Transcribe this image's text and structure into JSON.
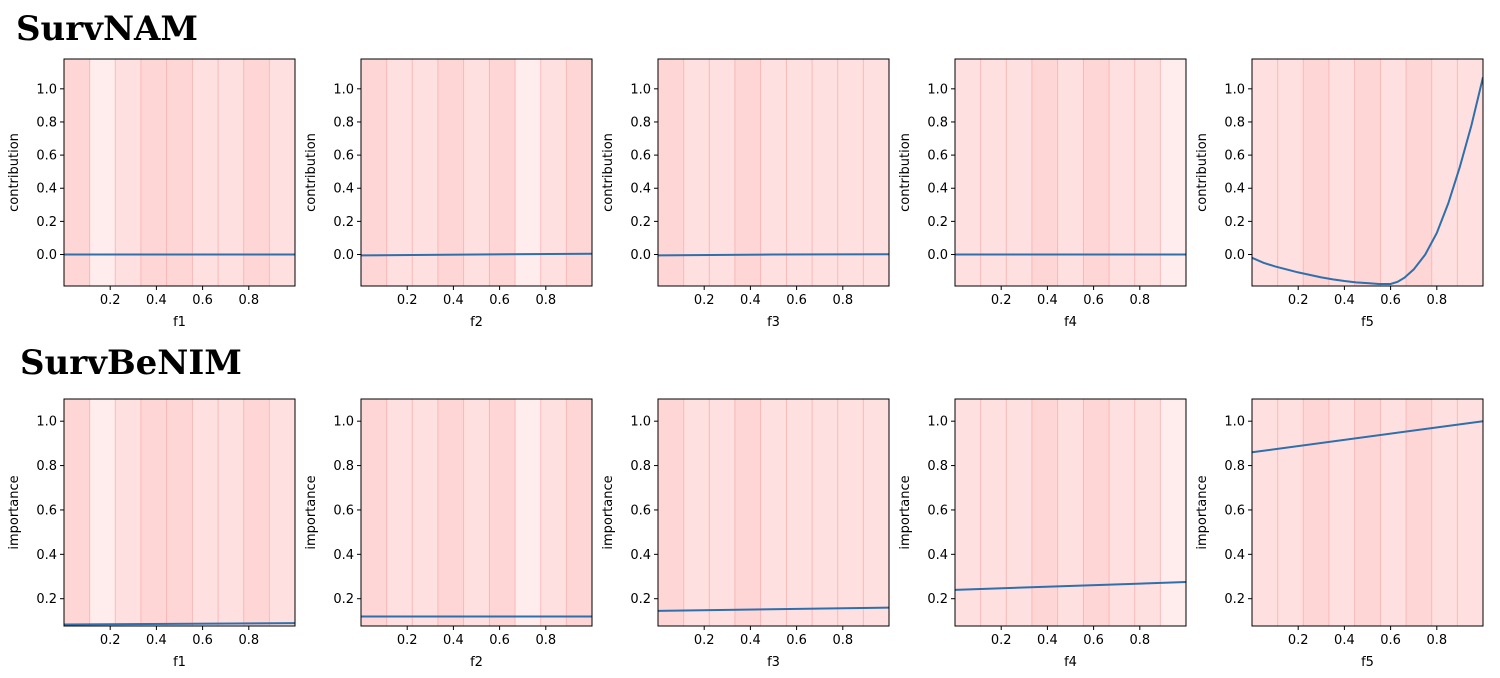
{
  "sections": [
    {
      "title": "SurvNAM"
    },
    {
      "title": "SurvBeNIM"
    }
  ],
  "colors": {
    "line": "#2f6fab",
    "band_light": "#ffecec",
    "band_mid": "#ffe0e0",
    "band_dark": "#ffd6d6",
    "band_edge": "#f4a9a6",
    "axis": "#000000"
  },
  "chart_data": [
    {
      "type": "line",
      "section": 0,
      "xlabel": "f1",
      "ylabel": "contribution",
      "xlim": [
        0,
        1
      ],
      "ylim": [
        -0.19,
        1.18
      ],
      "xticks": [
        "0.2",
        "0.4",
        "0.6",
        "0.8"
      ],
      "yticks": [
        "0.0",
        "0.2",
        "0.4",
        "0.6",
        "0.8",
        "1.0"
      ],
      "bands": [
        3,
        1,
        2,
        3,
        3,
        2,
        2,
        3,
        2
      ],
      "series": [
        {
          "x": [
            0,
            1
          ],
          "y": [
            0.0,
            0.0
          ]
        }
      ]
    },
    {
      "type": "line",
      "section": 0,
      "xlabel": "f2",
      "ylabel": "contribution",
      "xlim": [
        0,
        1
      ],
      "ylim": [
        -0.19,
        1.18
      ],
      "xticks": [
        "0.2",
        "0.4",
        "0.6",
        "0.8"
      ],
      "yticks": [
        "0.0",
        "0.2",
        "0.4",
        "0.6",
        "0.8",
        "1.0"
      ],
      "bands": [
        3,
        2,
        2,
        3,
        2,
        3,
        1,
        2,
        3
      ],
      "series": [
        {
          "x": [
            0,
            0.5,
            1
          ],
          "y": [
            -0.005,
            0.0,
            0.005
          ]
        }
      ]
    },
    {
      "type": "line",
      "section": 0,
      "xlabel": "f3",
      "ylabel": "contribution",
      "xlim": [
        0,
        1
      ],
      "ylim": [
        -0.19,
        1.18
      ],
      "xticks": [
        "0.2",
        "0.4",
        "0.6",
        "0.8"
      ],
      "yticks": [
        "0.0",
        "0.2",
        "0.4",
        "0.6",
        "0.8",
        "1.0"
      ],
      "bands": [
        3,
        2,
        2,
        3,
        2,
        2,
        2,
        2,
        2
      ],
      "series": [
        {
          "x": [
            0,
            0.5,
            1
          ],
          "y": [
            -0.005,
            0.0,
            0.002
          ]
        }
      ]
    },
    {
      "type": "line",
      "section": 0,
      "xlabel": "f4",
      "ylabel": "contribution",
      "xlim": [
        0,
        1
      ],
      "ylim": [
        -0.19,
        1.18
      ],
      "xticks": [
        "0.2",
        "0.4",
        "0.6",
        "0.8"
      ],
      "yticks": [
        "0.0",
        "0.2",
        "0.4",
        "0.6",
        "0.8",
        "1.0"
      ],
      "bands": [
        2,
        2,
        2,
        3,
        2,
        3,
        2,
        2,
        1
      ],
      "series": [
        {
          "x": [
            0,
            1
          ],
          "y": [
            0.0,
            0.0
          ]
        }
      ]
    },
    {
      "type": "line",
      "section": 0,
      "xlabel": "f5",
      "ylabel": "contribution",
      "xlim": [
        0,
        1
      ],
      "ylim": [
        -0.19,
        1.18
      ],
      "xticks": [
        "0.2",
        "0.4",
        "0.6",
        "0.8"
      ],
      "yticks": [
        "0.0",
        "0.2",
        "0.4",
        "0.6",
        "0.8",
        "1.0"
      ],
      "bands": [
        2,
        2,
        3,
        2,
        3,
        2,
        3,
        2,
        2
      ],
      "series": [
        {
          "x": [
            0,
            0.05,
            0.1,
            0.15,
            0.2,
            0.25,
            0.3,
            0.35,
            0.4,
            0.45,
            0.5,
            0.55,
            0.6,
            0.63,
            0.66,
            0.7,
            0.75,
            0.8,
            0.85,
            0.9,
            0.95,
            1.0
          ],
          "y": [
            -0.02,
            -0.05,
            -0.072,
            -0.09,
            -0.108,
            -0.123,
            -0.138,
            -0.15,
            -0.16,
            -0.168,
            -0.173,
            -0.178,
            -0.178,
            -0.165,
            -0.14,
            -0.09,
            0.0,
            0.13,
            0.31,
            0.53,
            0.78,
            1.07
          ]
        }
      ]
    },
    {
      "type": "line",
      "section": 1,
      "xlabel": "f1",
      "ylabel": "importance",
      "xlim": [
        0,
        1
      ],
      "ylim": [
        0.077,
        1.1
      ],
      "xticks": [
        "0.2",
        "0.4",
        "0.6",
        "0.8"
      ],
      "yticks": [
        "0.2",
        "0.4",
        "0.6",
        "0.8",
        "1.0"
      ],
      "bands": [
        3,
        1,
        2,
        3,
        3,
        2,
        2,
        3,
        2
      ],
      "series": [
        {
          "x": [
            0,
            1
          ],
          "y": [
            0.084,
            0.09
          ]
        }
      ]
    },
    {
      "type": "line",
      "section": 1,
      "xlabel": "f2",
      "ylabel": "importance",
      "xlim": [
        0,
        1
      ],
      "ylim": [
        0.077,
        1.1
      ],
      "xticks": [
        "0.2",
        "0.4",
        "0.6",
        "0.8"
      ],
      "yticks": [
        "0.2",
        "0.4",
        "0.6",
        "0.8",
        "1.0"
      ],
      "bands": [
        3,
        2,
        2,
        3,
        2,
        3,
        1,
        2,
        3
      ],
      "series": [
        {
          "x": [
            0,
            1
          ],
          "y": [
            0.12,
            0.12
          ]
        }
      ]
    },
    {
      "type": "line",
      "section": 1,
      "xlabel": "f3",
      "ylabel": "importance",
      "xlim": [
        0,
        1
      ],
      "ylim": [
        0.077,
        1.1
      ],
      "xticks": [
        "0.2",
        "0.4",
        "0.6",
        "0.8"
      ],
      "yticks": [
        "0.2",
        "0.4",
        "0.6",
        "0.8",
        "1.0"
      ],
      "bands": [
        3,
        2,
        2,
        3,
        2,
        2,
        2,
        2,
        2
      ],
      "series": [
        {
          "x": [
            0,
            1
          ],
          "y": [
            0.145,
            0.16
          ]
        }
      ]
    },
    {
      "type": "line",
      "section": 1,
      "xlabel": "f4",
      "ylabel": "importance",
      "xlim": [
        0,
        1
      ],
      "ylim": [
        0.077,
        1.1
      ],
      "xticks": [
        "0.2",
        "0.4",
        "0.6",
        "0.8"
      ],
      "yticks": [
        "0.2",
        "0.4",
        "0.6",
        "0.8",
        "1.0"
      ],
      "bands": [
        2,
        2,
        2,
        3,
        2,
        3,
        2,
        2,
        1
      ],
      "series": [
        {
          "x": [
            0,
            1
          ],
          "y": [
            0.24,
            0.275
          ]
        }
      ]
    },
    {
      "type": "line",
      "section": 1,
      "xlabel": "f5",
      "ylabel": "importance",
      "xlim": [
        0,
        1
      ],
      "ylim": [
        0.077,
        1.1
      ],
      "xticks": [
        "0.2",
        "0.4",
        "0.6",
        "0.8"
      ],
      "yticks": [
        "0.2",
        "0.4",
        "0.6",
        "0.8",
        "1.0"
      ],
      "bands": [
        2,
        2,
        3,
        2,
        3,
        2,
        3,
        2,
        2
      ],
      "series": [
        {
          "x": [
            0,
            1
          ],
          "y": [
            0.86,
            1.0
          ]
        }
      ]
    }
  ]
}
